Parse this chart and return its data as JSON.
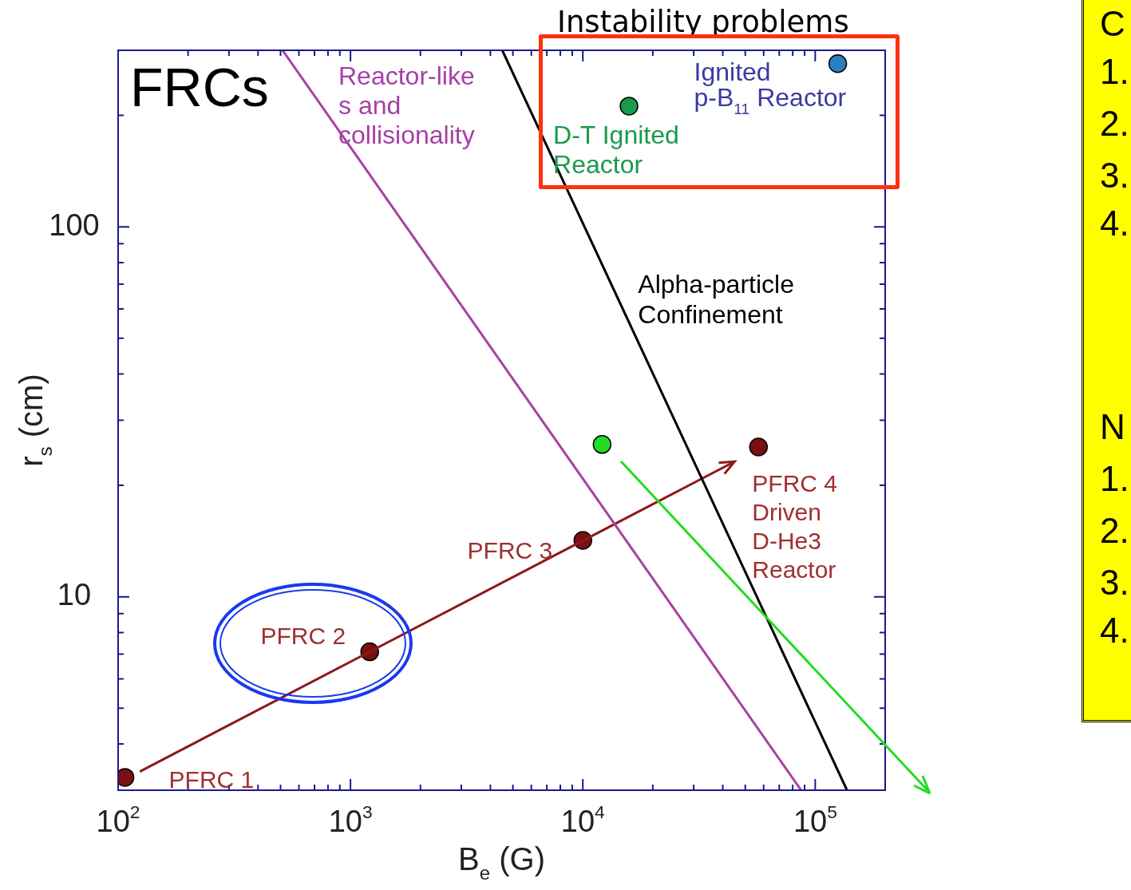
{
  "chart_data": {
    "type": "scatter",
    "title": "FRCs",
    "xlabel": "B$_{e}$ (G)",
    "ylabel": "r$_{s}$ (cm)",
    "log": "xy",
    "marker": "circle",
    "grid": false,
    "xlim": [
      100,
      200000
    ],
    "ylim": [
      3,
      300
    ],
    "xticks": [
      {
        "value": 100,
        "label": "10$^{2}$"
      },
      {
        "value": 200,
        "label": null
      },
      {
        "value": 300,
        "label": null
      },
      {
        "value": 400,
        "label": null
      },
      {
        "value": 500,
        "label": null
      },
      {
        "value": 600,
        "label": null
      },
      {
        "value": 700,
        "label": null
      },
      {
        "value": 800,
        "label": null
      },
      {
        "value": 900,
        "label": null
      },
      {
        "value": 1000,
        "label": "10$^{3}$"
      },
      {
        "value": 2000,
        "label": null
      },
      {
        "value": 3000,
        "label": null
      },
      {
        "value": 4000,
        "label": null
      },
      {
        "value": 5000,
        "label": null
      },
      {
        "value": 6000,
        "label": null
      },
      {
        "value": 7000,
        "label": null
      },
      {
        "value": 8000,
        "label": null
      },
      {
        "value": 9000,
        "label": null
      },
      {
        "value": 10000,
        "label": "10$^{4}$"
      },
      {
        "value": 20000,
        "label": null
      },
      {
        "value": 30000,
        "label": null
      },
      {
        "value": 40000,
        "label": null
      },
      {
        "value": 50000,
        "label": null
      },
      {
        "value": 60000,
        "label": null
      },
      {
        "value": 70000,
        "label": null
      },
      {
        "value": 80000,
        "label": null
      },
      {
        "value": 90000,
        "label": null
      },
      {
        "value": 100000,
        "label": "10$^{5}$"
      },
      {
        "value": 200000,
        "label": null
      }
    ],
    "yticks": [
      {
        "value": 3,
        "label": null
      },
      {
        "value": 4,
        "label": null
      },
      {
        "value": 5,
        "label": null
      },
      {
        "value": 6,
        "label": null
      },
      {
        "value": 7,
        "label": null
      },
      {
        "value": 8,
        "label": null
      },
      {
        "value": 9,
        "label": null
      },
      10,
      {
        "value": 20,
        "label": null
      },
      {
        "value": 30,
        "label": null
      },
      {
        "value": 40,
        "label": null
      },
      {
        "value": 50,
        "label": null
      },
      {
        "value": 60,
        "label": null
      },
      {
        "value": 70,
        "label": null
      },
      {
        "value": 80,
        "label": null
      },
      {
        "value": 90,
        "label": null
      },
      100,
      {
        "value": 200,
        "label": null
      },
      {
        "value": 300,
        "label": null
      }
    ],
    "series": [
      {
        "name": "Reactor-like\ns and\ncollisionality",
        "type": "line",
        "marker": "none",
        "color": "#a640a6",
        "x": [
          510,
          87000
        ],
        "values": [
          300,
          3
        ]
      },
      {
        "name": "Alpha-particle\nConfinement",
        "type": "line",
        "marker": "none",
        "color": "#000000",
        "x": [
          4500,
          137000
        ],
        "values": [
          300,
          3
        ]
      },
      {
        "type": "line",
        "marker": "none",
        "color": "#8b1a1a",
        "x": [
          124,
          45000
        ],
        "values": [
          3.37,
          23.2
        ]
      },
      {
        "name": "PFRC 1",
        "color": "#7a1010",
        "x": [
          107
        ],
        "values": [
          3.25
        ]
      },
      {
        "name": "PFRC 2",
        "color": "#7a1010",
        "x": [
          1210
        ],
        "values": [
          7.1
        ]
      },
      {
        "name": "PFRC 3",
        "color": "#7a1010",
        "x": [
          10000
        ],
        "values": [
          14.2
        ]
      },
      {
        "name": "PFRC 4\nDriven\nD-He3\nReactor",
        "color": "#7a1010",
        "x": [
          57000
        ],
        "values": [
          25.4
        ]
      },
      {
        "name": "D-T Ignited\nReactor",
        "color": "#1a9a4a",
        "x": [
          15800
        ],
        "values": [
          212
        ]
      },
      {
        "name": "Ignited\np-B$_{11}$ Reactor",
        "color": "#2a7fc0",
        "x": [
          125000
        ],
        "values": [
          276
        ]
      },
      {
        "color": "#22dd22",
        "x": [
          12100
        ],
        "values": [
          25.8
        ]
      }
    ],
    "annotations": [
      "Instability problems",
      "C",
      "1.",
      "2.",
      "3.",
      "4.",
      "N",
      "1.",
      "2.",
      "3.",
      "4."
    ]
  }
}
